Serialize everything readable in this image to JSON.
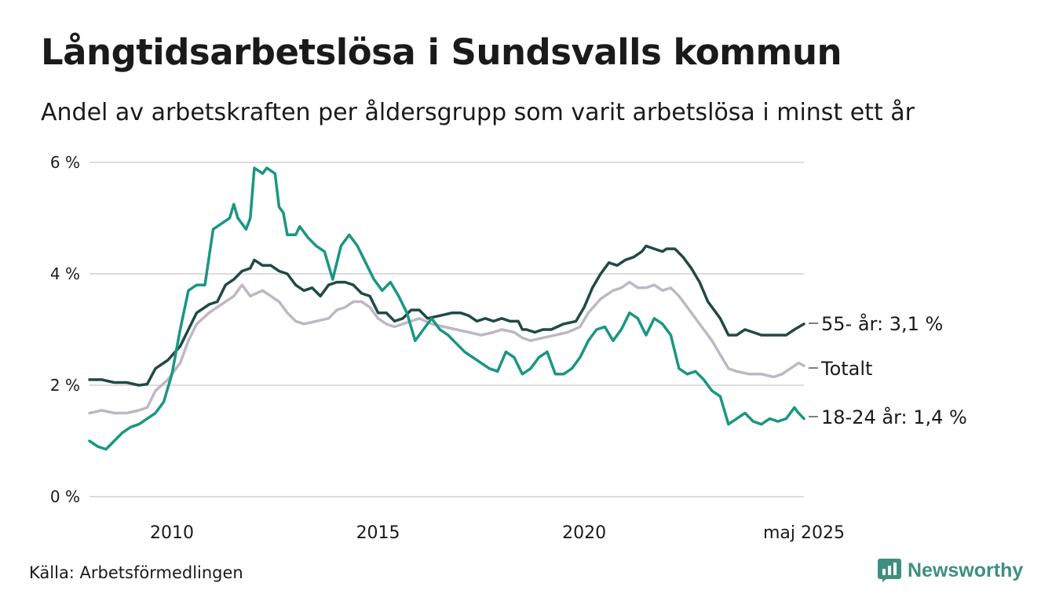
{
  "title": "Långtidsarbetslösa i Sundsvalls kommun",
  "subtitle": "Andel av arbetskraften per åldersgrupp som varit arbetslösa i minst ett år",
  "source": "Källa: Arbetsförmedlingen",
  "brand": {
    "name": "Newsworthy",
    "icon": "newsworthy-logo-icon"
  },
  "colors": {
    "series_old": "#1f4a44",
    "series_total": "#bdb8c6",
    "series_young": "#1a9682",
    "grid": "#dcdcdc",
    "text": "#1a1a1a",
    "brand": "#3f8f7f"
  },
  "chart_data": {
    "type": "line",
    "x_unit": "year",
    "xlim": [
      2008.0,
      2025.33
    ],
    "ylim": [
      0,
      6
    ],
    "y_ticks": [
      {
        "value": 0,
        "label": "0 %"
      },
      {
        "value": 2,
        "label": "2 %"
      },
      {
        "value": 4,
        "label": "4 %"
      },
      {
        "value": 6,
        "label": "6 %"
      }
    ],
    "x_ticks": [
      {
        "value": 2010,
        "label": "2010"
      },
      {
        "value": 2015,
        "label": "2015"
      },
      {
        "value": 2020,
        "label": "2020"
      },
      {
        "value": 2025.33,
        "label": "maj 2025"
      }
    ],
    "grid": true,
    "legend": "end-of-line labels",
    "series": [
      {
        "name": "55- år",
        "end_label": "55- år: 3,1 %",
        "color_key": "series_old",
        "points": [
          [
            2008.0,
            2.1
          ],
          [
            2008.3,
            2.1
          ],
          [
            2008.6,
            2.05
          ],
          [
            2008.9,
            2.05
          ],
          [
            2009.2,
            2.0
          ],
          [
            2009.4,
            2.02
          ],
          [
            2009.6,
            2.3
          ],
          [
            2009.9,
            2.45
          ],
          [
            2010.2,
            2.7
          ],
          [
            2010.4,
            3.0
          ],
          [
            2010.6,
            3.3
          ],
          [
            2010.9,
            3.45
          ],
          [
            2011.1,
            3.5
          ],
          [
            2011.3,
            3.8
          ],
          [
            2011.5,
            3.9
          ],
          [
            2011.7,
            4.05
          ],
          [
            2011.9,
            4.1
          ],
          [
            2012.0,
            4.25
          ],
          [
            2012.2,
            4.15
          ],
          [
            2012.4,
            4.15
          ],
          [
            2012.6,
            4.05
          ],
          [
            2012.8,
            4.0
          ],
          [
            2013.0,
            3.8
          ],
          [
            2013.2,
            3.7
          ],
          [
            2013.4,
            3.75
          ],
          [
            2013.6,
            3.6
          ],
          [
            2013.8,
            3.8
          ],
          [
            2014.0,
            3.85
          ],
          [
            2014.2,
            3.85
          ],
          [
            2014.4,
            3.8
          ],
          [
            2014.6,
            3.65
          ],
          [
            2014.8,
            3.6
          ],
          [
            2015.0,
            3.3
          ],
          [
            2015.2,
            3.3
          ],
          [
            2015.4,
            3.15
          ],
          [
            2015.6,
            3.2
          ],
          [
            2015.8,
            3.35
          ],
          [
            2016.0,
            3.35
          ],
          [
            2016.2,
            3.2
          ],
          [
            2016.5,
            3.25
          ],
          [
            2016.8,
            3.3
          ],
          [
            2017.0,
            3.3
          ],
          [
            2017.2,
            3.25
          ],
          [
            2017.4,
            3.15
          ],
          [
            2017.6,
            3.2
          ],
          [
            2017.8,
            3.15
          ],
          [
            2018.0,
            3.2
          ],
          [
            2018.2,
            3.15
          ],
          [
            2018.4,
            3.15
          ],
          [
            2018.5,
            3.0
          ],
          [
            2018.6,
            3.0
          ],
          [
            2018.8,
            2.95
          ],
          [
            2019.0,
            3.0
          ],
          [
            2019.2,
            3.0
          ],
          [
            2019.5,
            3.1
          ],
          [
            2019.8,
            3.15
          ],
          [
            2020.0,
            3.4
          ],
          [
            2020.2,
            3.75
          ],
          [
            2020.4,
            4.0
          ],
          [
            2020.6,
            4.2
          ],
          [
            2020.8,
            4.15
          ],
          [
            2021.0,
            4.25
          ],
          [
            2021.2,
            4.3
          ],
          [
            2021.4,
            4.4
          ],
          [
            2021.5,
            4.5
          ],
          [
            2021.7,
            4.45
          ],
          [
            2021.9,
            4.4
          ],
          [
            2022.0,
            4.45
          ],
          [
            2022.2,
            4.45
          ],
          [
            2022.4,
            4.3
          ],
          [
            2022.6,
            4.1
          ],
          [
            2022.8,
            3.85
          ],
          [
            2023.0,
            3.5
          ],
          [
            2023.2,
            3.3
          ],
          [
            2023.3,
            3.2
          ],
          [
            2023.5,
            2.9
          ],
          [
            2023.7,
            2.9
          ],
          [
            2023.9,
            3.0
          ],
          [
            2024.1,
            2.95
          ],
          [
            2024.3,
            2.9
          ],
          [
            2024.5,
            2.9
          ],
          [
            2024.7,
            2.9
          ],
          [
            2024.9,
            2.9
          ],
          [
            2025.1,
            3.0
          ],
          [
            2025.33,
            3.1
          ]
        ]
      },
      {
        "name": "Totalt",
        "end_label": "Totalt",
        "color_key": "series_total",
        "points": [
          [
            2008.0,
            1.5
          ],
          [
            2008.3,
            1.55
          ],
          [
            2008.6,
            1.5
          ],
          [
            2008.9,
            1.5
          ],
          [
            2009.2,
            1.55
          ],
          [
            2009.4,
            1.6
          ],
          [
            2009.6,
            1.9
          ],
          [
            2009.9,
            2.1
          ],
          [
            2010.2,
            2.4
          ],
          [
            2010.4,
            2.8
          ],
          [
            2010.6,
            3.1
          ],
          [
            2010.9,
            3.3
          ],
          [
            2011.1,
            3.4
          ],
          [
            2011.3,
            3.5
          ],
          [
            2011.5,
            3.6
          ],
          [
            2011.7,
            3.8
          ],
          [
            2011.9,
            3.6
          ],
          [
            2012.2,
            3.7
          ],
          [
            2012.4,
            3.6
          ],
          [
            2012.6,
            3.5
          ],
          [
            2012.8,
            3.3
          ],
          [
            2013.0,
            3.15
          ],
          [
            2013.2,
            3.1
          ],
          [
            2013.5,
            3.15
          ],
          [
            2013.8,
            3.2
          ],
          [
            2014.0,
            3.35
          ],
          [
            2014.2,
            3.4
          ],
          [
            2014.4,
            3.5
          ],
          [
            2014.6,
            3.5
          ],
          [
            2014.8,
            3.4
          ],
          [
            2015.0,
            3.2
          ],
          [
            2015.2,
            3.1
          ],
          [
            2015.4,
            3.05
          ],
          [
            2015.6,
            3.1
          ],
          [
            2015.8,
            3.15
          ],
          [
            2016.0,
            3.2
          ],
          [
            2016.3,
            3.1
          ],
          [
            2016.6,
            3.05
          ],
          [
            2016.9,
            3.0
          ],
          [
            2017.2,
            2.95
          ],
          [
            2017.5,
            2.9
          ],
          [
            2017.8,
            2.95
          ],
          [
            2018.0,
            3.0
          ],
          [
            2018.3,
            2.95
          ],
          [
            2018.5,
            2.85
          ],
          [
            2018.7,
            2.8
          ],
          [
            2019.0,
            2.85
          ],
          [
            2019.3,
            2.9
          ],
          [
            2019.6,
            2.95
          ],
          [
            2019.9,
            3.05
          ],
          [
            2020.1,
            3.3
          ],
          [
            2020.4,
            3.55
          ],
          [
            2020.7,
            3.7
          ],
          [
            2020.9,
            3.75
          ],
          [
            2021.1,
            3.85
          ],
          [
            2021.3,
            3.75
          ],
          [
            2021.5,
            3.75
          ],
          [
            2021.7,
            3.8
          ],
          [
            2021.9,
            3.7
          ],
          [
            2022.1,
            3.75
          ],
          [
            2022.3,
            3.6
          ],
          [
            2022.5,
            3.4
          ],
          [
            2022.7,
            3.2
          ],
          [
            2022.9,
            3.0
          ],
          [
            2023.1,
            2.8
          ],
          [
            2023.3,
            2.55
          ],
          [
            2023.5,
            2.3
          ],
          [
            2023.7,
            2.25
          ],
          [
            2024.0,
            2.2
          ],
          [
            2024.3,
            2.2
          ],
          [
            2024.6,
            2.15
          ],
          [
            2024.8,
            2.2
          ],
          [
            2025.0,
            2.3
          ],
          [
            2025.2,
            2.4
          ],
          [
            2025.33,
            2.35
          ]
        ]
      },
      {
        "name": "18-24 år",
        "end_label": "18-24 år: 1,4 %",
        "color_key": "series_young",
        "points": [
          [
            2008.0,
            1.0
          ],
          [
            2008.2,
            0.9
          ],
          [
            2008.4,
            0.85
          ],
          [
            2008.6,
            1.0
          ],
          [
            2008.8,
            1.15
          ],
          [
            2009.0,
            1.25
          ],
          [
            2009.2,
            1.3
          ],
          [
            2009.4,
            1.4
          ],
          [
            2009.6,
            1.5
          ],
          [
            2009.8,
            1.7
          ],
          [
            2010.0,
            2.2
          ],
          [
            2010.2,
            3.0
          ],
          [
            2010.4,
            3.7
          ],
          [
            2010.6,
            3.8
          ],
          [
            2010.8,
            3.8
          ],
          [
            2011.0,
            4.8
          ],
          [
            2011.2,
            4.9
          ],
          [
            2011.4,
            5.0
          ],
          [
            2011.5,
            5.25
          ],
          [
            2011.6,
            5.0
          ],
          [
            2011.8,
            4.8
          ],
          [
            2011.9,
            5.0
          ],
          [
            2012.0,
            5.9
          ],
          [
            2012.2,
            5.8
          ],
          [
            2012.3,
            5.9
          ],
          [
            2012.5,
            5.8
          ],
          [
            2012.6,
            5.2
          ],
          [
            2012.7,
            5.1
          ],
          [
            2012.8,
            4.7
          ],
          [
            2013.0,
            4.7
          ],
          [
            2013.1,
            4.85
          ],
          [
            2013.3,
            4.65
          ],
          [
            2013.5,
            4.5
          ],
          [
            2013.7,
            4.4
          ],
          [
            2013.9,
            3.9
          ],
          [
            2014.1,
            4.5
          ],
          [
            2014.3,
            4.7
          ],
          [
            2014.5,
            4.5
          ],
          [
            2014.7,
            4.2
          ],
          [
            2014.9,
            3.9
          ],
          [
            2015.1,
            3.7
          ],
          [
            2015.3,
            3.85
          ],
          [
            2015.5,
            3.6
          ],
          [
            2015.7,
            3.3
          ],
          [
            2015.9,
            2.8
          ],
          [
            2016.1,
            3.0
          ],
          [
            2016.3,
            3.2
          ],
          [
            2016.5,
            3.0
          ],
          [
            2016.7,
            2.9
          ],
          [
            2016.9,
            2.75
          ],
          [
            2017.1,
            2.6
          ],
          [
            2017.3,
            2.5
          ],
          [
            2017.5,
            2.4
          ],
          [
            2017.7,
            2.3
          ],
          [
            2017.9,
            2.25
          ],
          [
            2018.1,
            2.6
          ],
          [
            2018.3,
            2.5
          ],
          [
            2018.5,
            2.2
          ],
          [
            2018.7,
            2.3
          ],
          [
            2018.9,
            2.5
          ],
          [
            2019.1,
            2.6
          ],
          [
            2019.3,
            2.2
          ],
          [
            2019.5,
            2.2
          ],
          [
            2019.7,
            2.3
          ],
          [
            2019.9,
            2.5
          ],
          [
            2020.1,
            2.8
          ],
          [
            2020.3,
            3.0
          ],
          [
            2020.5,
            3.05
          ],
          [
            2020.7,
            2.8
          ],
          [
            2020.9,
            3.0
          ],
          [
            2021.1,
            3.3
          ],
          [
            2021.3,
            3.2
          ],
          [
            2021.5,
            2.9
          ],
          [
            2021.7,
            3.2
          ],
          [
            2021.9,
            3.1
          ],
          [
            2022.1,
            2.9
          ],
          [
            2022.3,
            2.3
          ],
          [
            2022.5,
            2.2
          ],
          [
            2022.7,
            2.25
          ],
          [
            2022.9,
            2.1
          ],
          [
            2023.1,
            1.9
          ],
          [
            2023.3,
            1.8
          ],
          [
            2023.5,
            1.3
          ],
          [
            2023.7,
            1.4
          ],
          [
            2023.9,
            1.5
          ],
          [
            2024.1,
            1.35
          ],
          [
            2024.3,
            1.3
          ],
          [
            2024.5,
            1.4
          ],
          [
            2024.7,
            1.35
          ],
          [
            2024.9,
            1.4
          ],
          [
            2025.1,
            1.6
          ],
          [
            2025.2,
            1.5
          ],
          [
            2025.33,
            1.4
          ]
        ]
      }
    ]
  }
}
